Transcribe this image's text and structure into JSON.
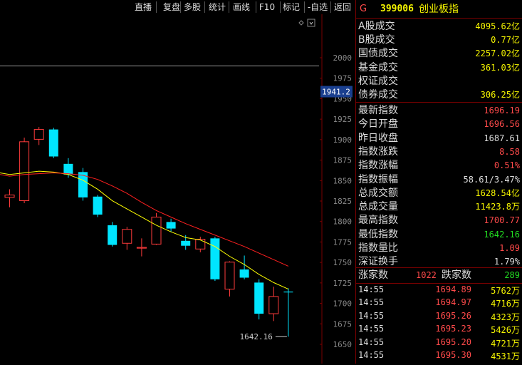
{
  "toolbar": {
    "buttons": [
      "直播",
      "复盘",
      "多股",
      "统计",
      "画线",
      "F10",
      "标记",
      "-自选",
      "返回"
    ]
  },
  "header": {
    "flag": "G",
    "code": "399006",
    "name": "创业板指"
  },
  "colors": {
    "up": "#ff3b3b",
    "down": "#00e5ff",
    "ma5": "#ffff00",
    "ma10": "#ff2020",
    "accent": "#ff4a4a",
    "yellow": "#f4f400"
  },
  "stats": [
    {
      "label": "A股成交",
      "value": "4095.62亿"
    },
    {
      "label": "B股成交",
      "value": "0.77亿"
    },
    {
      "label": "国债成交",
      "value": "2257.02亿"
    },
    {
      "label": "基金成交",
      "value": "361.03亿"
    },
    {
      "label": "权证成交",
      "value": ""
    },
    {
      "label": "债券成交",
      "value": "306.25亿"
    }
  ],
  "index_stats": [
    {
      "label": "最新指数",
      "value": "1696.19"
    },
    {
      "label": "今日开盘",
      "value": "1696.56"
    },
    {
      "label": "昨日收盘",
      "value": "1687.61"
    },
    {
      "label": "指数涨跌",
      "value": "8.58"
    },
    {
      "label": "指数涨幅",
      "value": "0.51%"
    },
    {
      "label": "指数振幅",
      "value": "58.61/3.47%"
    },
    {
      "label": "总成交额",
      "value": "1628.54亿"
    },
    {
      "label": "总成交量",
      "value": "11423.8万"
    },
    {
      "label": "最高指数",
      "value": "1700.77"
    },
    {
      "label": "最低指数",
      "value": "1642.16"
    },
    {
      "label": "指数量比",
      "value": "1.09"
    },
    {
      "label": "深证换手",
      "value": "1.79%"
    }
  ],
  "breadth": {
    "up_label": "涨家数",
    "up_value": "1022",
    "down_label": "跌家数",
    "down_value": "289"
  },
  "ticks": [
    {
      "time": "14:55",
      "price": "1694.89",
      "volume": "5762万"
    },
    {
      "time": "14:55",
      "price": "1694.97",
      "volume": "4716万"
    },
    {
      "time": "14:55",
      "price": "1695.26",
      "volume": "4323万"
    },
    {
      "time": "14:55",
      "price": "1695.23",
      "volume": "5426万"
    },
    {
      "time": "14:55",
      "price": "1695.20",
      "volume": "4721万"
    },
    {
      "time": "14:55",
      "price": "1695.30",
      "volume": "4531万"
    }
  ],
  "chart_data": {
    "type": "candlestick",
    "y_ticks": [
      "2000",
      "1975",
      "1950",
      "1925",
      "1900",
      "1875",
      "1850",
      "1825",
      "1800",
      "1775",
      "1750",
      "1725",
      "1700",
      "1675",
      "1650"
    ],
    "ylim": [
      1635,
      2040
    ],
    "price_marker": "1941.2",
    "low_label": "1642.16",
    "candles": [
      {
        "o": 1812,
        "c": 1815,
        "h": 1822,
        "l": 1800
      },
      {
        "o": 1808,
        "c": 1880,
        "h": 1885,
        "l": 1805
      },
      {
        "o": 1883,
        "c": 1895,
        "h": 1898,
        "l": 1876
      },
      {
        "o": 1895,
        "c": 1862,
        "h": 1897,
        "l": 1860
      },
      {
        "o": 1853,
        "c": 1840,
        "h": 1860,
        "l": 1836
      },
      {
        "o": 1843,
        "c": 1812,
        "h": 1848,
        "l": 1808
      },
      {
        "o": 1813,
        "c": 1791,
        "h": 1815,
        "l": 1788
      },
      {
        "o": 1778,
        "c": 1754,
        "h": 1782,
        "l": 1752
      },
      {
        "o": 1756,
        "c": 1773,
        "h": 1776,
        "l": 1748
      },
      {
        "o": 1750,
        "c": 1751,
        "h": 1762,
        "l": 1740
      },
      {
        "o": 1755,
        "c": 1788,
        "h": 1793,
        "l": 1754
      },
      {
        "o": 1782,
        "c": 1774,
        "h": 1786,
        "l": 1770
      },
      {
        "o": 1759,
        "c": 1753,
        "h": 1766,
        "l": 1748
      },
      {
        "o": 1749,
        "c": 1761,
        "h": 1764,
        "l": 1745
      },
      {
        "o": 1762,
        "c": 1712,
        "h": 1764,
        "l": 1710
      },
      {
        "o": 1700,
        "c": 1733,
        "h": 1734,
        "l": 1691
      },
      {
        "o": 1724,
        "c": 1714,
        "h": 1741,
        "l": 1712
      },
      {
        "o": 1708,
        "c": 1670,
        "h": 1712,
        "l": 1663
      },
      {
        "o": 1670,
        "c": 1691,
        "h": 1703,
        "l": 1661
      },
      {
        "o": 1697,
        "c": 1696,
        "h": 1701,
        "l": 1642
      }
    ],
    "ma5": [
      1840,
      1842,
      1844,
      1843,
      1840,
      1833,
      1822,
      1808,
      1798,
      1788,
      1778,
      1770,
      1763,
      1760,
      1752,
      1740,
      1730,
      1718,
      1708,
      1700
    ],
    "ma10": [
      1838,
      1840,
      1841,
      1842,
      1841,
      1839,
      1834,
      1826,
      1817,
      1806,
      1796,
      1788,
      1780,
      1773,
      1766,
      1759,
      1752,
      1744,
      1736,
      1728
    ]
  }
}
